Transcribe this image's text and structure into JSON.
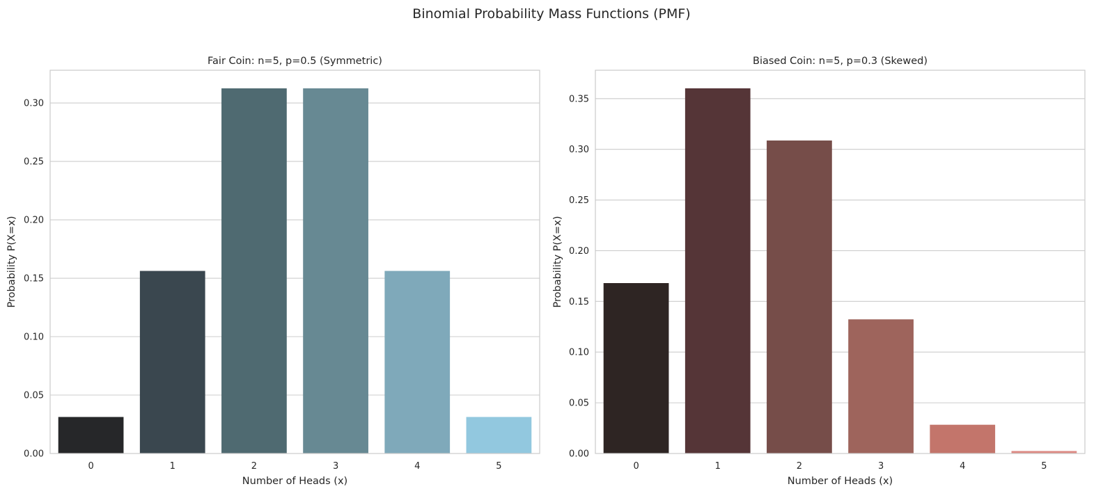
{
  "figure": {
    "suptitle": "Binomial Probability Mass Functions (PMF)"
  },
  "chart_data": [
    {
      "type": "bar",
      "title": "Fair Coin: n=5, p=0.5 (Symmetric)",
      "xlabel": "Number of Heads (x)",
      "ylabel": "Probability P(X=x)",
      "categories": [
        "0",
        "1",
        "2",
        "3",
        "4",
        "5"
      ],
      "values": [
        0.03125,
        0.15625,
        0.3125,
        0.3125,
        0.15625,
        0.03125
      ],
      "colors": [
        "#262729",
        "#3a474f",
        "#4f6a71",
        "#678993",
        "#7fa9ba",
        "#92c8df"
      ],
      "ylim": [
        0,
        0.328
      ],
      "yticks": [
        "0.00",
        "0.05",
        "0.10",
        "0.15",
        "0.20",
        "0.25",
        "0.30"
      ],
      "grid": "y"
    },
    {
      "type": "bar",
      "title": "Biased Coin: n=5, p=0.3 (Skewed)",
      "xlabel": "Number of Heads (x)",
      "ylabel": "Probability P(X=x)",
      "categories": [
        "0",
        "1",
        "2",
        "3",
        "4",
        "5"
      ],
      "values": [
        0.16807,
        0.36015,
        0.3087,
        0.1323,
        0.02835,
        0.00243
      ],
      "colors": [
        "#2e2523",
        "#553537",
        "#764d49",
        "#9e645c",
        "#c3756b",
        "#dc8a84"
      ],
      "ylim": [
        0,
        0.378
      ],
      "yticks": [
        "0.00",
        "0.05",
        "0.10",
        "0.15",
        "0.20",
        "0.25",
        "0.30",
        "0.35"
      ],
      "grid": "y"
    }
  ]
}
